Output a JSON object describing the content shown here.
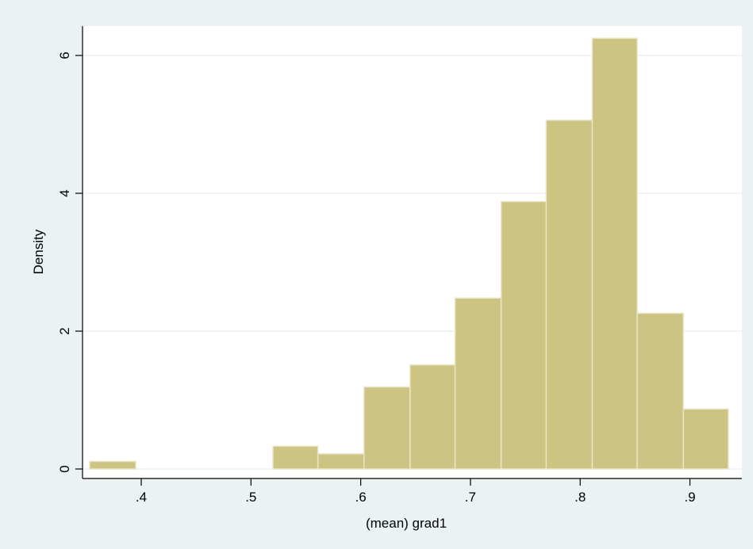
{
  "chart_data": {
    "type": "bar",
    "subtype": "histogram",
    "title": "",
    "xlabel": "(mean) grad1",
    "ylabel": "Density",
    "xlim": [
      0.35,
      0.935
    ],
    "ylim": [
      0,
      6.5
    ],
    "x_ticks": [
      0.4,
      0.5,
      0.6,
      0.7,
      0.8,
      0.9
    ],
    "x_tick_labels": [
      ".4",
      ".5",
      ".6",
      ".7",
      ".8",
      ".9"
    ],
    "y_ticks": [
      0,
      2,
      4,
      6
    ],
    "y_tick_labels": [
      "0",
      "2",
      "4",
      "6"
    ],
    "bins": [
      {
        "x0": 0.353,
        "x1": 0.395,
        "density": 0.11
      },
      {
        "x0": 0.395,
        "x1": 0.436,
        "density": 0
      },
      {
        "x0": 0.436,
        "x1": 0.478,
        "density": 0
      },
      {
        "x0": 0.478,
        "x1": 0.52,
        "density": 0
      },
      {
        "x0": 0.52,
        "x1": 0.561,
        "density": 0.33
      },
      {
        "x0": 0.561,
        "x1": 0.603,
        "density": 0.22
      },
      {
        "x0": 0.603,
        "x1": 0.645,
        "density": 1.19
      },
      {
        "x0": 0.645,
        "x1": 0.686,
        "density": 1.51
      },
      {
        "x0": 0.686,
        "x1": 0.728,
        "density": 2.48
      },
      {
        "x0": 0.728,
        "x1": 0.769,
        "density": 3.88
      },
      {
        "x0": 0.769,
        "x1": 0.811,
        "density": 5.06
      },
      {
        "x0": 0.811,
        "x1": 0.852,
        "density": 6.25
      },
      {
        "x0": 0.852,
        "x1": 0.894,
        "density": 2.26
      },
      {
        "x0": 0.894,
        "x1": 0.935,
        "density": 0.87
      }
    ],
    "grid": true,
    "legend": "none",
    "colors": {
      "bar_fill": "#cdc383",
      "bar_stroke": "#e8e6c6",
      "background": "#eaf2f3",
      "plot_background": "#ffffff",
      "grid": "#eaf2f3",
      "axis": "#000000"
    }
  }
}
